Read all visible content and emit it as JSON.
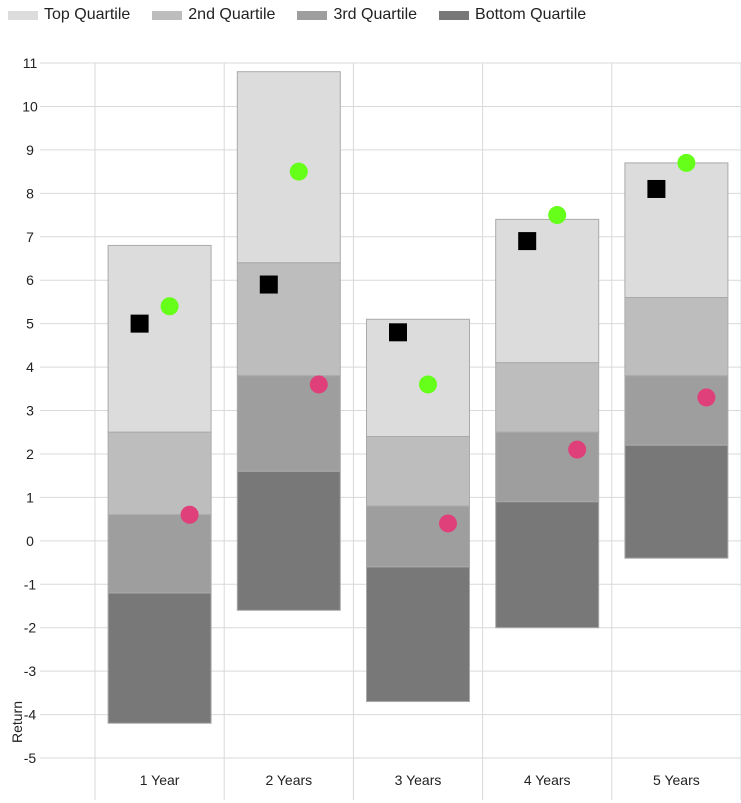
{
  "chart_data": {
    "type": "bar",
    "subtype": "stacked-range-with-markers",
    "categories": [
      "1 Year",
      "2 Years",
      "3 Years",
      "4 Years",
      "5 Years"
    ],
    "ylabel": "Return",
    "ylim": [
      -5,
      11
    ],
    "yticks": [
      11,
      10,
      9,
      8,
      7,
      6,
      5,
      4,
      3,
      2,
      1,
      0,
      -1,
      -2,
      -3,
      -4,
      -5
    ],
    "grid": true,
    "legend": "top",
    "series": [
      {
        "name": "Top Quartile",
        "color": "#dcdcdc",
        "ranges": [
          [
            2.5,
            6.8
          ],
          [
            6.4,
            10.8
          ],
          [
            2.4,
            5.1
          ],
          [
            4.1,
            7.4
          ],
          [
            5.6,
            8.7
          ]
        ]
      },
      {
        "name": "2nd Quartile",
        "color": "#bdbdbd",
        "ranges": [
          [
            0.6,
            2.5
          ],
          [
            3.8,
            6.4
          ],
          [
            0.8,
            2.4
          ],
          [
            2.5,
            4.1
          ],
          [
            3.8,
            5.6
          ]
        ]
      },
      {
        "name": "3rd Quartile",
        "color": "#9e9e9e",
        "ranges": [
          [
            -1.2,
            0.6
          ],
          [
            1.6,
            3.8
          ],
          [
            -0.6,
            0.8
          ],
          [
            0.9,
            2.5
          ],
          [
            2.2,
            3.8
          ]
        ]
      },
      {
        "name": "Bottom Quartile",
        "color": "#787878",
        "ranges": [
          [
            -4.2,
            -1.2
          ],
          [
            -1.6,
            1.6
          ],
          [
            -3.7,
            -0.6
          ],
          [
            -2.0,
            0.9
          ],
          [
            -0.4,
            2.2
          ]
        ]
      }
    ],
    "markers": [
      {
        "shape": "square",
        "color": "#000000",
        "values": [
          5.0,
          5.9,
          4.8,
          6.9,
          8.1
        ]
      },
      {
        "shape": "circle",
        "color": "#66ff1a",
        "values": [
          5.4,
          8.5,
          3.6,
          7.5,
          8.7
        ]
      },
      {
        "shape": "circle",
        "color": "#e0407a",
        "values": [
          0.6,
          3.6,
          0.4,
          2.1,
          3.3
        ]
      }
    ]
  }
}
